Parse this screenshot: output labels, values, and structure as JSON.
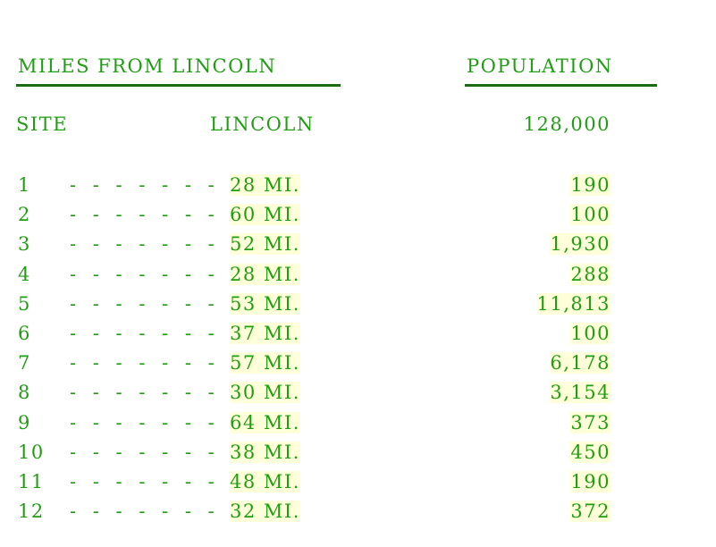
{
  "header": {
    "left": "MILES FROM LINCOLN",
    "right": "POPULATION"
  },
  "lincoln_row": {
    "site_label": "SITE",
    "place": "LINCOLN",
    "population": "128,000"
  },
  "dashes": "- - - - - - -",
  "rows": [
    {
      "site": "1",
      "miles": "28 MI.",
      "population": "190"
    },
    {
      "site": "2",
      "miles": "60 MI.",
      "population": "100"
    },
    {
      "site": "3",
      "miles": "52 MI.",
      "population": "1,930"
    },
    {
      "site": "4",
      "miles": "28 MI.",
      "population": "288"
    },
    {
      "site": "5",
      "miles": "53 MI.",
      "population": "11,813"
    },
    {
      "site": "6",
      "miles": "37 MI.",
      "population": "100"
    },
    {
      "site": "7",
      "miles": "57 MI.",
      "population": "6,178"
    },
    {
      "site": "8",
      "miles": "30 MI.",
      "population": "3,154"
    },
    {
      "site": "9",
      "miles": "64 MI.",
      "population": "373"
    },
    {
      "site": "10",
      "miles": "38 MI.",
      "population": "450"
    },
    {
      "site": "11",
      "miles": "48 MI.",
      "population": "190"
    },
    {
      "site": "12",
      "miles": "32 MI.",
      "population": "372"
    }
  ]
}
